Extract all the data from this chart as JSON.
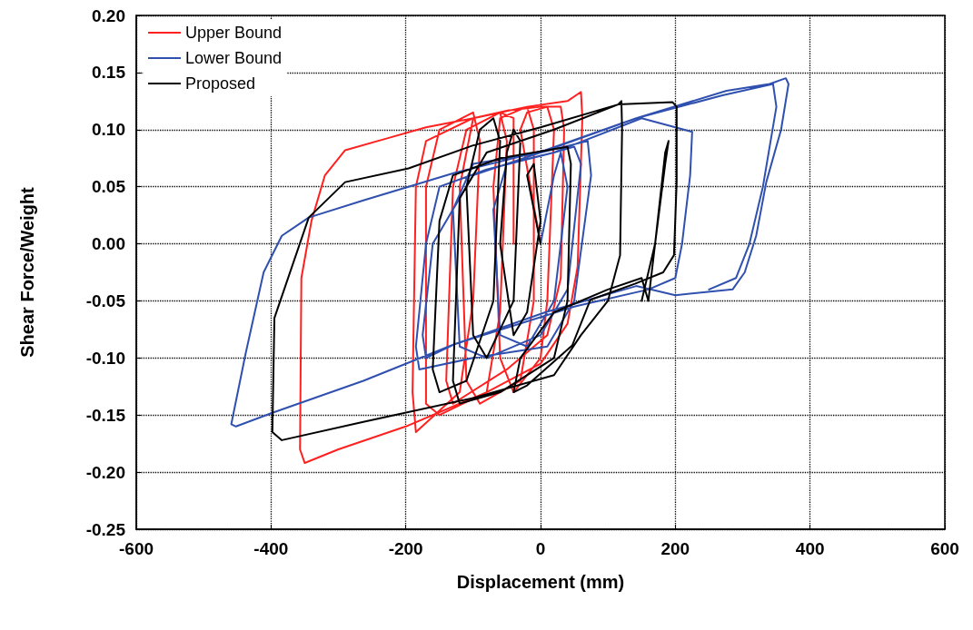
{
  "chart_data": {
    "type": "line",
    "xlabel": "Displacement (mm)",
    "ylabel": "Shear Force/Weight",
    "xlim": [
      -600,
      600
    ],
    "xticks": [
      -600,
      -400,
      -200,
      0,
      200,
      400,
      600
    ],
    "ylim": [
      -0.25,
      0.2
    ],
    "yticks": [
      {
        "value": -0.25,
        "label": "-0.25"
      },
      {
        "value": -0.2,
        "label": "-0.20"
      },
      {
        "value": -0.15,
        "label": "-0.15"
      },
      {
        "value": -0.1,
        "label": "-0.10"
      },
      {
        "value": -0.05,
        "label": "-0.05"
      },
      {
        "value": 0,
        "label": "0.00"
      },
      {
        "value": 0.05,
        "label": "0.05"
      },
      {
        "value": 0.1,
        "label": "0.10"
      },
      {
        "value": 0.15,
        "label": "0.15"
      },
      {
        "value": 0.2,
        "label": "0.20"
      }
    ],
    "grid": true,
    "legend": "top left",
    "series": [
      {
        "name": "Upper Bound",
        "color": "#ff2020",
        "x": [
          0,
          -30,
          -20,
          10,
          20,
          10,
          0,
          -40,
          -60,
          -70,
          -60,
          -20,
          -10,
          -10,
          -30,
          -90,
          -110,
          -120,
          -100,
          -60,
          -50,
          -60,
          -80,
          -150,
          -170,
          -170,
          -150,
          -100,
          -90,
          -100,
          -120,
          -185,
          -190,
          -185,
          -170,
          -100,
          -20,
          40,
          60,
          62,
          55,
          40,
          0,
          -80,
          -200,
          -300,
          -350,
          -357,
          -355,
          -340,
          -320,
          -290,
          -230,
          -170,
          -100,
          -47,
          0,
          30,
          35,
          30,
          10,
          -50,
          -130,
          -140,
          -130,
          -110,
          -60,
          -40,
          -40
        ],
        "values": [
          0,
          0.1,
          0.115,
          0.12,
          0.1,
          -0.05,
          -0.1,
          -0.13,
          -0.1,
          0.05,
          0.11,
          0.12,
          0.1,
          -0.05,
          -0.12,
          -0.14,
          -0.12,
          0.05,
          0.11,
          0.115,
          0.09,
          -0.06,
          -0.13,
          -0.15,
          -0.14,
          0.05,
          0.1,
          0.115,
          0.09,
          -0.05,
          -0.13,
          -0.165,
          -0.13,
          0.05,
          0.09,
          0.11,
          0.12,
          0.125,
          0.133,
          0.11,
          -0.02,
          -0.07,
          -0.105,
          -0.13,
          -0.16,
          -0.18,
          -0.192,
          -0.18,
          -0.03,
          0.02,
          0.06,
          0.082,
          0.092,
          0.102,
          0.11,
          0.117,
          0.12,
          0.12,
          0.1,
          -0.03,
          -0.08,
          -0.11,
          -0.14,
          -0.12,
          0.05,
          0.1,
          0.115,
          0.11,
          0
        ]
      },
      {
        "name": "Lower Bound",
        "color": "#3050b0",
        "x": [
          0,
          20,
          30,
          40,
          20,
          -20,
          -60,
          -70,
          -50,
          20,
          50,
          60,
          40,
          0,
          -80,
          -120,
          -130,
          -100,
          0,
          70,
          75,
          50,
          10,
          -100,
          -180,
          -185,
          -170,
          -150,
          -80,
          20,
          150,
          225,
          222,
          210,
          200,
          160,
          50,
          -128,
          -263,
          -398,
          -452,
          -459,
          -438,
          -411,
          -384,
          -344,
          -263,
          -128,
          7,
          142,
          276,
          340,
          364,
          368,
          357,
          335,
          320,
          303,
          285,
          200,
          142,
          7,
          -128,
          -170,
          -175,
          -160,
          -100,
          0,
          142,
          270,
          345,
          350,
          330,
          310,
          290,
          250
        ],
        "values": [
          0,
          0.06,
          0.08,
          0.05,
          -0.05,
          -0.09,
          -0.08,
          0.03,
          0.07,
          0.08,
          0.085,
          0.07,
          -0.04,
          -0.08,
          -0.1,
          -0.09,
          0.03,
          0.07,
          0.08,
          0.09,
          0.06,
          -0.05,
          -0.09,
          -0.1,
          -0.11,
          -0.09,
          0,
          0.05,
          0.065,
          0.08,
          0.11,
          0.098,
          0.06,
          0,
          -0.03,
          -0.04,
          -0.055,
          -0.088,
          -0.12,
          -0.148,
          -0.16,
          -0.158,
          -0.097,
          -0.025,
          0.007,
          0.023,
          0.038,
          0.062,
          0.082,
          0.11,
          0.134,
          0.14,
          0.145,
          0.14,
          0.1,
          0.054,
          0.007,
          -0.025,
          -0.04,
          -0.045,
          -0.037,
          -0.06,
          -0.088,
          -0.1,
          -0.08,
          0,
          0.06,
          0.08,
          0.11,
          0.13,
          0.14,
          0.12,
          0.05,
          0,
          -0.03,
          -0.04
        ]
      },
      {
        "name": "Proposed",
        "color": "#000000",
        "x": [
          0,
          -20,
          -10,
          0,
          -20,
          -40,
          -60,
          -50,
          -40,
          -30,
          -40,
          -80,
          -100,
          -110,
          -90,
          -70,
          -60,
          -70,
          -110,
          -150,
          -160,
          -150,
          -130,
          -60,
          40,
          45,
          40,
          20,
          -60,
          -120,
          -130,
          -120,
          -80,
          20,
          115,
          120,
          121,
          118,
          100,
          60,
          20,
          -100,
          -263,
          -384,
          -398,
          -395,
          -344,
          -290,
          -196,
          -101,
          0,
          115,
          196,
          202,
          202,
          198,
          182,
          140,
          74,
          47,
          -20,
          -40,
          -30,
          20,
          100,
          150,
          160,
          170,
          185,
          190,
          185,
          170,
          150
        ],
        "values": [
          0,
          0.06,
          0.07,
          0.02,
          -0.06,
          -0.08,
          0,
          0.08,
          0.1,
          0.09,
          -0.05,
          -0.1,
          -0.08,
          0.05,
          0.1,
          0.11,
          0.09,
          -0.05,
          -0.12,
          -0.13,
          -0.11,
          0.02,
          0.06,
          0.075,
          0.085,
          0.07,
          -0.05,
          -0.1,
          -0.13,
          -0.14,
          -0.12,
          0.04,
          0.08,
          0.1,
          0.122,
          0.125,
          0.1,
          -0.01,
          -0.05,
          -0.08,
          -0.115,
          -0.135,
          -0.156,
          -0.172,
          -0.165,
          -0.065,
          0.023,
          0.054,
          0.066,
          0.086,
          0.102,
          0.122,
          0.124,
          0.12,
          0.054,
          -0.01,
          -0.025,
          -0.035,
          -0.049,
          -0.089,
          -0.124,
          -0.13,
          -0.1,
          -0.06,
          -0.04,
          -0.03,
          -0.05,
          0,
          0.07,
          0.09,
          0.08,
          0,
          -0.05
        ]
      }
    ]
  }
}
